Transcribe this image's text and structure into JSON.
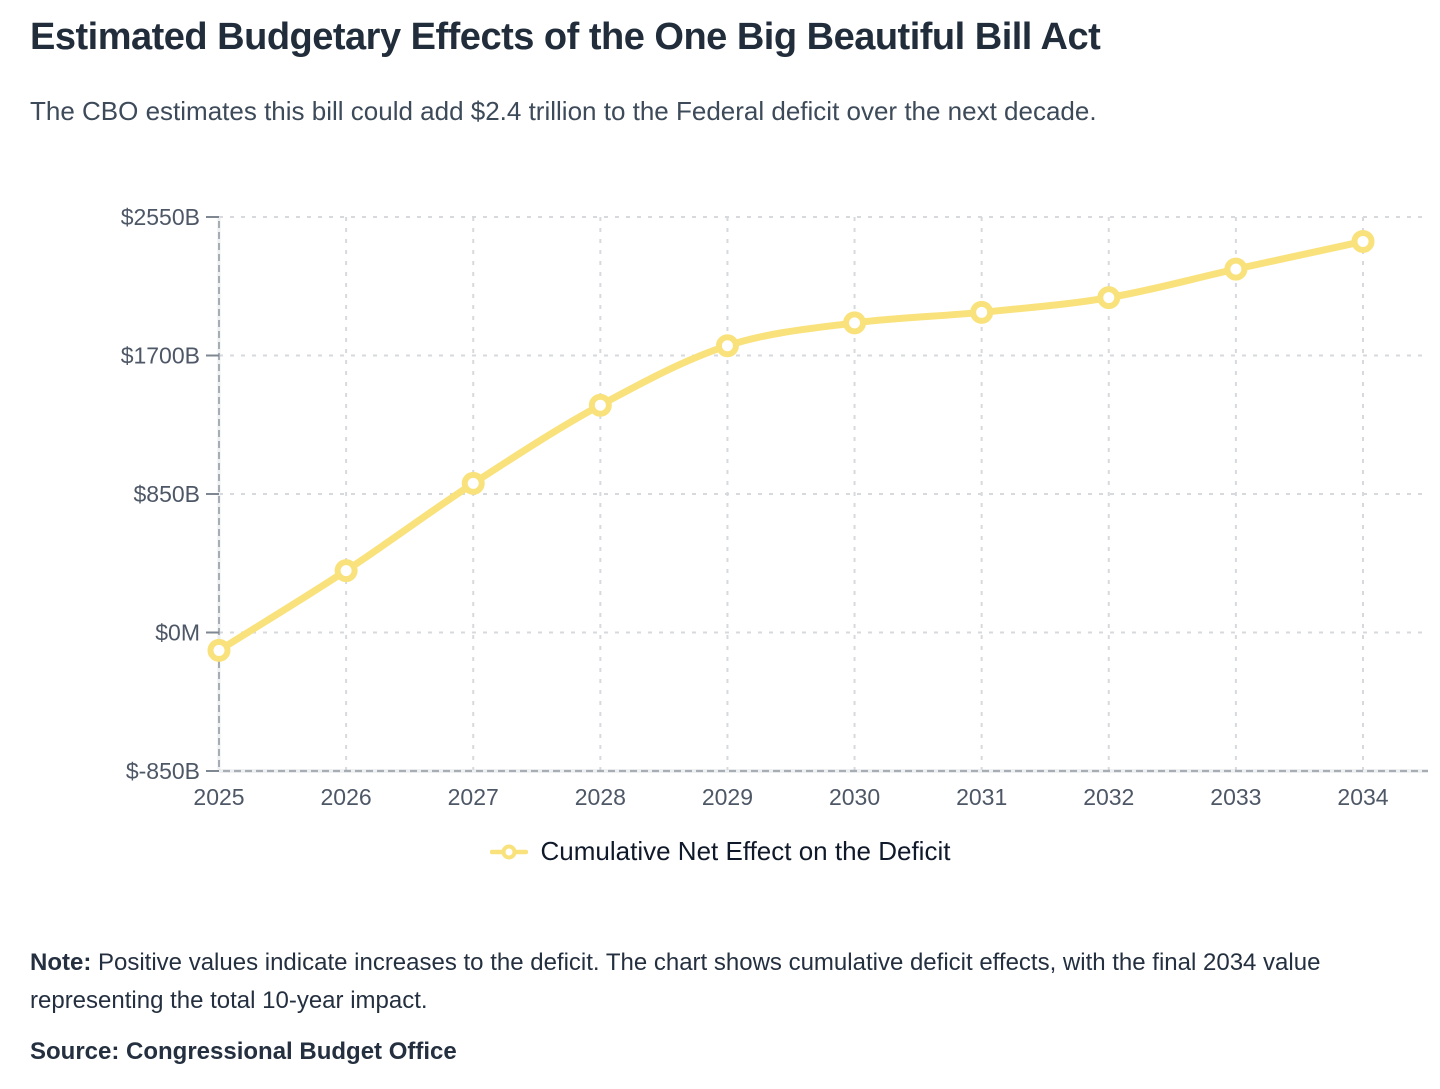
{
  "header": {
    "title": "Estimated Budgetary Effects of the One Big Beautiful Bill Act",
    "subtitle": "The CBO estimates this bill could add $2.4 trillion to the Federal deficit over the next decade."
  },
  "chart_data": {
    "type": "line",
    "title": "Estimated Budgetary Effects of the One Big Beautiful Bill Act",
    "xlabel": "",
    "ylabel": "",
    "unit": "billions of dollars",
    "x": [
      2025,
      2026,
      2027,
      2028,
      2029,
      2030,
      2031,
      2032,
      2033,
      2034
    ],
    "series": [
      {
        "name": "Cumulative Net Effect on the Deficit",
        "values": [
          -110,
          380,
          915,
          1395,
          1760,
          1900,
          1965,
          2055,
          2230,
          2400
        ]
      }
    ],
    "ylim": [
      -850,
      2550
    ],
    "y_ticks": {
      "values": [
        2550,
        1700,
        850,
        0,
        -850
      ],
      "labels": [
        "$2550B",
        "$1700B",
        "$850B",
        "$0M",
        "$-850B"
      ]
    },
    "grid": "dashed",
    "legend_position": "bottom",
    "curve": "monotone",
    "marker": "open-circle"
  },
  "legend": {
    "label": "Cumulative Net Effect on the Deficit"
  },
  "footnotes": {
    "note_label": "Note:",
    "note_text": " Positive values indicate increases to the deficit. The chart shows cumulative deficit effects, with the final 2034 value representing the total 10-year impact.",
    "source": "Source: Congressional Budget Office"
  },
  "colors": {
    "line": "#F9E27B",
    "marker_fill": "#ffffff",
    "gridline": "#D7D9DD",
    "axis": "#A7ADB5",
    "axis_dash_overlay": "#EDEFF1",
    "tick": "#7E8792",
    "tick_label": "#4D5766",
    "title": "#222D3B",
    "subtitle": "#3D4A59",
    "note": "#243040"
  }
}
